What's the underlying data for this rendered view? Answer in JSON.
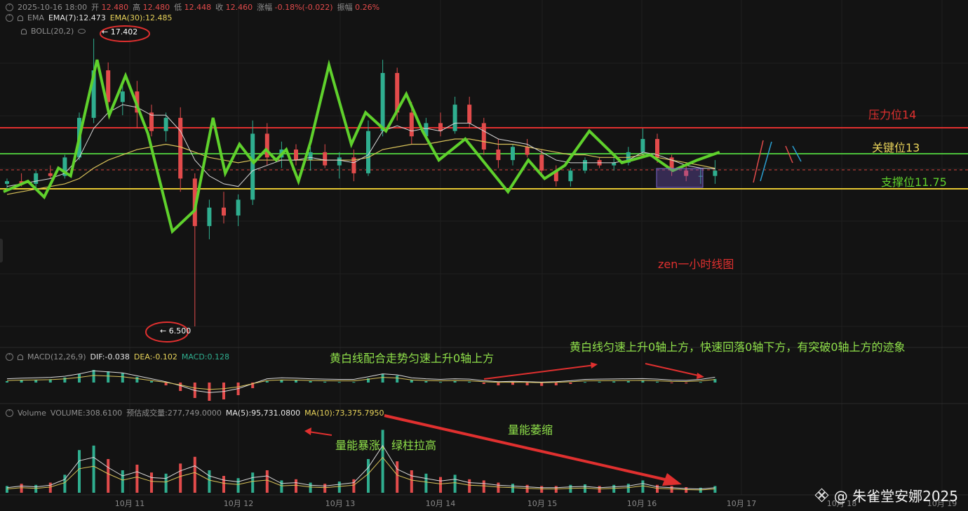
{
  "header": {
    "datetime": "2025-10-16 18:00",
    "open_label": "开",
    "open": "12.480",
    "high_label": "高",
    "high": "12.480",
    "low_label": "低",
    "low": "12.448",
    "close_label": "收",
    "close": "12.460",
    "change_label": "涨幅",
    "change": "-0.18%(-0.022)",
    "amplitude_label": "振幅",
    "amplitude": "0.26%"
  },
  "ema": {
    "name": "EMA",
    "ema7": "EMA(7):12.473",
    "ema30": "EMA(30):12.485"
  },
  "boll": {
    "name": "BOLL(20,2)"
  },
  "macd": {
    "name": "MACD(12,26,9)",
    "dif": "DIF:-0.038",
    "dea": "DEA:-0.102",
    "macd": "MACD:0.128"
  },
  "volume": {
    "name": "Volume",
    "volume": "VOLUME:308.6100",
    "est": "预估成交量:277,749.0000",
    "ma5": "MA(5):95,731.0800",
    "ma10": "MA(10):73,375.7950"
  },
  "annotations": {
    "high_marker": "← 17.402",
    "low_marker": "← 6.500",
    "resistance": "压力位14",
    "key_level": "关键位13",
    "support": "支撑位11.75",
    "chart_title": "zen一小时线图",
    "macd_note_1": "黄白线配合走势匀速上升0轴上方",
    "macd_note_2": "黄白线匀速上升0轴上方，快速回落0轴下方，有突破0轴上方的迹象",
    "vol_note_1": "量能暴涨，绿柱拉高",
    "vol_note_2": "量能萎缩"
  },
  "watermark": "@ 朱雀堂安娜2025",
  "colors": {
    "background": "#131313",
    "up": "#2fae8f",
    "down": "#e24b4b",
    "zigzag": "#5fd12c",
    "resistance": "#e0302f",
    "key": "#4cc13a",
    "support": "#e6c832"
  },
  "chart_data": {
    "type": "candlestick",
    "x_tick_labels": [
      "10月 11",
      "10月 12",
      "10月 13",
      "10月 14",
      "10月 15",
      "10月 16",
      "10月 17",
      "10月 18",
      "10月 19"
    ],
    "price_extremes": {
      "high": 17.402,
      "low": 6.5
    },
    "levels": [
      {
        "label": "压力位14",
        "value": 14
      },
      {
        "label": "关键位13",
        "value": 13
      },
      {
        "label": "支撑位11.75",
        "value": 11.75
      }
    ],
    "current_price": 12.46,
    "zigzag_path": [
      [
        0,
        11.6
      ],
      [
        1.2,
        12.0
      ],
      [
        2.0,
        11.4
      ],
      [
        2.7,
        12.5
      ],
      [
        3.3,
        12.2
      ],
      [
        4.6,
        16.6
      ],
      [
        5.2,
        14.5
      ],
      [
        6.0,
        16.0
      ],
      [
        7.1,
        13.8
      ],
      [
        8.3,
        10.1
      ],
      [
        9.4,
        10.9
      ],
      [
        10.3,
        14.4
      ],
      [
        10.9,
        12.3
      ],
      [
        11.6,
        13.4
      ],
      [
        12.3,
        12.7
      ],
      [
        12.9,
        13.2
      ],
      [
        13.4,
        12.8
      ],
      [
        13.9,
        13.2
      ],
      [
        14.5,
        12.0
      ],
      [
        15.1,
        13.5
      ],
      [
        16.0,
        16.4
      ],
      [
        17.1,
        13.4
      ],
      [
        17.8,
        14.6
      ],
      [
        18.8,
        13.9
      ],
      [
        19.8,
        15.3
      ],
      [
        20.6,
        13.9
      ],
      [
        21.4,
        12.8
      ],
      [
        22.7,
        13.6
      ],
      [
        24.8,
        11.6
      ],
      [
        25.8,
        12.8
      ],
      [
        26.6,
        12.1
      ],
      [
        27.6,
        12.6
      ],
      [
        28.8,
        13.9
      ],
      [
        30.4,
        12.7
      ],
      [
        31.8,
        13.0
      ],
      [
        32.9,
        12.4
      ],
      [
        34.1,
        12.8
      ],
      [
        35.2,
        13.1
      ]
    ],
    "candles": [
      {
        "o": 11.9,
        "h": 12.1,
        "l": 11.7,
        "c": 12.0
      },
      {
        "o": 12.0,
        "h": 12.3,
        "l": 11.8,
        "c": 11.9
      },
      {
        "o": 11.9,
        "h": 12.4,
        "l": 11.7,
        "c": 12.3
      },
      {
        "o": 12.3,
        "h": 12.6,
        "l": 12.1,
        "c": 12.2
      },
      {
        "o": 12.2,
        "h": 13.0,
        "l": 12.1,
        "c": 12.9
      },
      {
        "o": 12.9,
        "h": 14.6,
        "l": 12.8,
        "c": 14.4
      },
      {
        "o": 14.4,
        "h": 17.4,
        "l": 14.2,
        "c": 16.2
      },
      {
        "o": 16.2,
        "h": 16.5,
        "l": 14.6,
        "c": 15.0
      },
      {
        "o": 15.0,
        "h": 15.8,
        "l": 14.5,
        "c": 15.4
      },
      {
        "o": 15.4,
        "h": 15.8,
        "l": 14.0,
        "c": 14.6
      },
      {
        "o": 14.6,
        "h": 14.9,
        "l": 13.7,
        "c": 13.9
      },
      {
        "o": 13.9,
        "h": 14.6,
        "l": 13.5,
        "c": 14.4
      },
      {
        "o": 14.4,
        "h": 14.8,
        "l": 11.6,
        "c": 12.1
      },
      {
        "o": 12.1,
        "h": 12.3,
        "l": 6.5,
        "c": 10.3
      },
      {
        "o": 10.3,
        "h": 11.3,
        "l": 9.8,
        "c": 11.0
      },
      {
        "o": 11.0,
        "h": 11.6,
        "l": 10.4,
        "c": 10.7
      },
      {
        "o": 10.7,
        "h": 11.5,
        "l": 10.3,
        "c": 11.3
      },
      {
        "o": 11.3,
        "h": 14.3,
        "l": 11.1,
        "c": 13.8
      },
      {
        "o": 13.8,
        "h": 14.2,
        "l": 12.6,
        "c": 12.9
      },
      {
        "o": 12.9,
        "h": 13.5,
        "l": 12.5,
        "c": 13.2
      },
      {
        "o": 13.2,
        "h": 13.4,
        "l": 12.6,
        "c": 12.8
      },
      {
        "o": 12.8,
        "h": 13.3,
        "l": 12.4,
        "c": 13.1
      },
      {
        "o": 13.1,
        "h": 13.4,
        "l": 12.5,
        "c": 12.6
      },
      {
        "o": 12.6,
        "h": 13.1,
        "l": 12.1,
        "c": 12.9
      },
      {
        "o": 12.9,
        "h": 13.2,
        "l": 12.0,
        "c": 12.3
      },
      {
        "o": 12.3,
        "h": 14.3,
        "l": 12.2,
        "c": 13.9
      },
      {
        "o": 13.9,
        "h": 16.6,
        "l": 13.7,
        "c": 16.1
      },
      {
        "o": 16.1,
        "h": 16.3,
        "l": 14.3,
        "c": 14.6
      },
      {
        "o": 14.6,
        "h": 15.0,
        "l": 13.4,
        "c": 13.7
      },
      {
        "o": 13.7,
        "h": 14.4,
        "l": 13.6,
        "c": 14.2
      },
      {
        "o": 14.2,
        "h": 14.6,
        "l": 13.7,
        "c": 13.9
      },
      {
        "o": 13.9,
        "h": 15.2,
        "l": 13.8,
        "c": 14.9
      },
      {
        "o": 14.9,
        "h": 15.2,
        "l": 14.0,
        "c": 14.2
      },
      {
        "o": 14.2,
        "h": 14.4,
        "l": 13.0,
        "c": 13.2
      },
      {
        "o": 13.2,
        "h": 13.6,
        "l": 12.5,
        "c": 12.8
      },
      {
        "o": 12.8,
        "h": 13.4,
        "l": 12.6,
        "c": 13.3
      },
      {
        "o": 13.3,
        "h": 13.6,
        "l": 12.9,
        "c": 13.0
      },
      {
        "o": 13.0,
        "h": 13.2,
        "l": 12.2,
        "c": 12.4
      },
      {
        "o": 12.4,
        "h": 12.6,
        "l": 11.8,
        "c": 12.0
      },
      {
        "o": 12.0,
        "h": 12.5,
        "l": 11.8,
        "c": 12.4
      },
      {
        "o": 12.4,
        "h": 12.9,
        "l": 12.3,
        "c": 12.8
      },
      {
        "o": 12.8,
        "h": 12.9,
        "l": 12.5,
        "c": 12.6
      },
      {
        "o": 12.6,
        "h": 12.9,
        "l": 12.4,
        "c": 12.7
      },
      {
        "o": 12.7,
        "h": 13.3,
        "l": 12.6,
        "c": 13.1
      },
      {
        "o": 13.1,
        "h": 14.0,
        "l": 13.0,
        "c": 13.6
      },
      {
        "o": 13.6,
        "h": 13.8,
        "l": 12.7,
        "c": 12.9
      },
      {
        "o": 12.9,
        "h": 13.0,
        "l": 12.2,
        "c": 12.4
      },
      {
        "o": 12.4,
        "h": 12.6,
        "l": 12.0,
        "c": 12.2
      },
      {
        "o": 12.2,
        "h": 12.5,
        "l": 11.9,
        "c": 12.2
      },
      {
        "o": 12.2,
        "h": 12.8,
        "l": 11.9,
        "c": 12.4
      }
    ],
    "ema7": [
      11.8,
      11.9,
      12.0,
      12.1,
      12.3,
      12.9,
      14.0,
      14.6,
      14.9,
      14.8,
      14.5,
      14.5,
      13.9,
      12.8,
      12.2,
      11.9,
      11.8,
      12.4,
      12.6,
      12.8,
      12.8,
      12.9,
      12.8,
      12.8,
      12.7,
      13.0,
      13.9,
      14.1,
      13.9,
      14.0,
      13.9,
      14.2,
      14.2,
      13.9,
      13.6,
      13.5,
      13.4,
      13.1,
      12.8,
      12.7,
      12.7,
      12.7,
      12.7,
      12.8,
      13.1,
      13.0,
      12.8,
      12.6,
      12.5,
      12.47
    ],
    "ema30": [
      11.5,
      11.6,
      11.7,
      11.8,
      11.9,
      12.1,
      12.5,
      12.8,
      13.0,
      13.2,
      13.3,
      13.4,
      13.3,
      13.1,
      12.9,
      12.8,
      12.7,
      12.8,
      12.8,
      12.8,
      12.8,
      12.8,
      12.8,
      12.8,
      12.8,
      12.9,
      13.2,
      13.3,
      13.4,
      13.4,
      13.5,
      13.6,
      13.6,
      13.5,
      13.4,
      13.4,
      13.3,
      13.2,
      13.1,
      13.0,
      13.0,
      12.9,
      12.9,
      12.9,
      13.0,
      12.9,
      12.8,
      12.7,
      12.6,
      12.49
    ],
    "macd_hist": [
      0.05,
      0.08,
      0.1,
      0.12,
      0.18,
      0.3,
      0.45,
      0.4,
      0.35,
      0.2,
      0.05,
      -0.1,
      -0.3,
      -0.55,
      -0.65,
      -0.6,
      -0.45,
      -0.2,
      0.05,
      0.1,
      0.08,
      0.05,
      0.03,
      0.02,
      0.02,
      0.15,
      0.3,
      0.25,
      0.1,
      0.05,
      0.02,
      0.05,
      0.03,
      -0.05,
      -0.1,
      -0.08,
      -0.1,
      -0.12,
      -0.1,
      -0.05,
      0.02,
      0.03,
      0.04,
      0.05,
      0.06,
      0.03,
      -0.02,
      -0.03,
      0.02,
      0.128
    ],
    "volume": [
      60,
      80,
      70,
      90,
      160,
      380,
      420,
      300,
      200,
      250,
      180,
      170,
      260,
      320,
      200,
      150,
      130,
      180,
      200,
      110,
      120,
      90,
      80,
      100,
      120,
      300,
      560,
      280,
      200,
      170,
      140,
      160,
      120,
      110,
      90,
      80,
      70,
      60,
      60,
      70,
      75,
      60,
      70,
      80,
      110,
      70,
      60,
      50,
      45,
      60
    ]
  }
}
